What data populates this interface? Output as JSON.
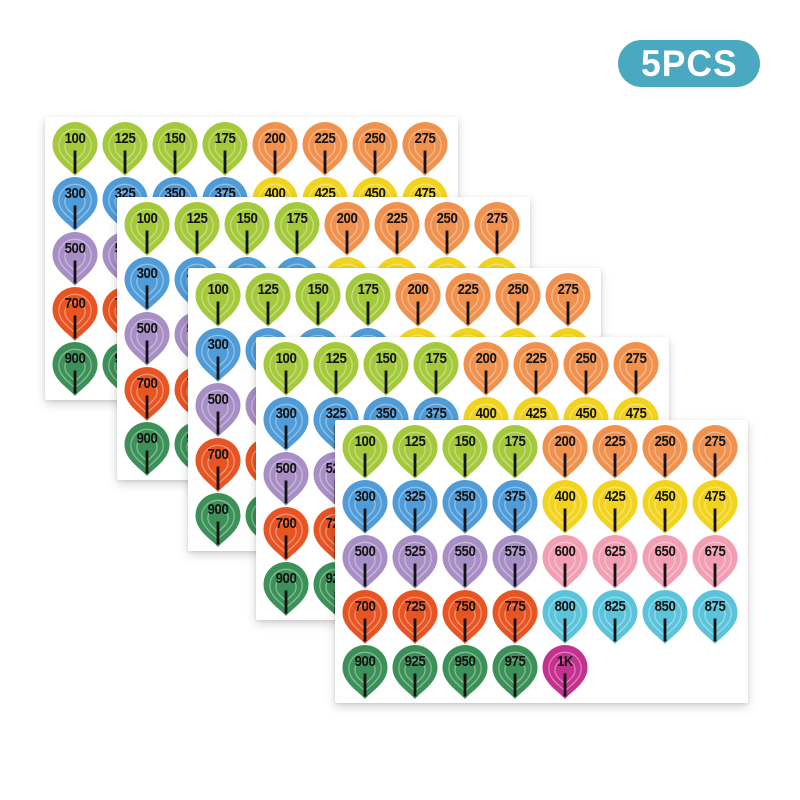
{
  "badge": {
    "label": "5PCS",
    "background": "#4BA8C1",
    "text_color": "#FFFFFF"
  },
  "sheets": {
    "count": 5,
    "background": "#FFFFFF",
    "sticker_shape": "balloon-teardrop",
    "number_color": "#121212",
    "stem_color": "#121212"
  },
  "sticker_sheet": {
    "columns": 8,
    "rows": [
      {
        "stickers": [
          {
            "value": "100",
            "color": "#A4C93A"
          },
          {
            "value": "125",
            "color": "#A4C93A"
          },
          {
            "value": "150",
            "color": "#A4C93A"
          },
          {
            "value": "175",
            "color": "#A4C93A"
          },
          {
            "value": "200",
            "color": "#F0914E"
          },
          {
            "value": "225",
            "color": "#F0914E"
          },
          {
            "value": "250",
            "color": "#F0914E"
          },
          {
            "value": "275",
            "color": "#F0914E"
          }
        ]
      },
      {
        "stickers": [
          {
            "value": "300",
            "color": "#4F9CD8"
          },
          {
            "value": "325",
            "color": "#4F9CD8"
          },
          {
            "value": "350",
            "color": "#4F9CD8"
          },
          {
            "value": "375",
            "color": "#4F9CD8"
          },
          {
            "value": "400",
            "color": "#F2D41F"
          },
          {
            "value": "425",
            "color": "#F2D41F"
          },
          {
            "value": "450",
            "color": "#F2D41F"
          },
          {
            "value": "475",
            "color": "#F2D41F"
          }
        ]
      },
      {
        "stickers": [
          {
            "value": "500",
            "color": "#A78FC6"
          },
          {
            "value": "525",
            "color": "#A78FC6"
          },
          {
            "value": "550",
            "color": "#A78FC6"
          },
          {
            "value": "575",
            "color": "#A78FC6"
          },
          {
            "value": "600",
            "color": "#F29FB4"
          },
          {
            "value": "625",
            "color": "#F29FB4"
          },
          {
            "value": "650",
            "color": "#F29FB4"
          },
          {
            "value": "675",
            "color": "#F29FB4"
          }
        ]
      },
      {
        "stickers": [
          {
            "value": "700",
            "color": "#E85422"
          },
          {
            "value": "725",
            "color": "#E85422"
          },
          {
            "value": "750",
            "color": "#E85422"
          },
          {
            "value": "775",
            "color": "#E85422"
          },
          {
            "value": "800",
            "color": "#5BC4DB"
          },
          {
            "value": "825",
            "color": "#5BC4DB"
          },
          {
            "value": "850",
            "color": "#5BC4DB"
          },
          {
            "value": "875",
            "color": "#5BC4DB"
          }
        ]
      },
      {
        "stickers": [
          {
            "value": "900",
            "color": "#3C9158"
          },
          {
            "value": "925",
            "color": "#3C9158"
          },
          {
            "value": "950",
            "color": "#3C9158"
          },
          {
            "value": "975",
            "color": "#3C9158"
          },
          {
            "value": "1K",
            "color": "#C5318F"
          }
        ]
      }
    ]
  }
}
